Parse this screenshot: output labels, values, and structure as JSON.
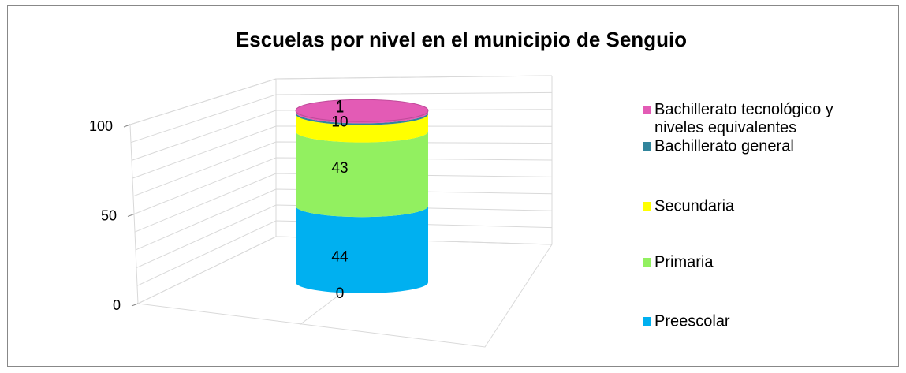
{
  "chart_data": {
    "type": "bar3d_stacked_cylinder",
    "title": "Escuelas por nivel en el municipio de Senguio",
    "categories": [
      null
    ],
    "series": [
      {
        "values": [
          0
        ]
      },
      {
        "name": "Preescolar",
        "color": "#00b0f0",
        "values": [
          44
        ]
      },
      {
        "name": "Primaria",
        "color": "#92f060",
        "values": [
          43
        ]
      },
      {
        "name": "Secundaria",
        "color": "#ffff00",
        "values": [
          10
        ]
      },
      {
        "name": "Bachillerato general",
        "color": "#31859c",
        "values": [
          1
        ]
      },
      {
        "name": "Bachillerato tecnológico y niveles equivalentes",
        "color": "#e35bb5",
        "values": [
          1
        ]
      }
    ],
    "ylim": [
      0,
      100
    ],
    "yticks": [
      0,
      50,
      100
    ],
    "yminorticks": [
      10,
      20,
      30,
      40,
      60,
      70,
      80,
      90
    ],
    "grid": true,
    "legend": "right"
  }
}
